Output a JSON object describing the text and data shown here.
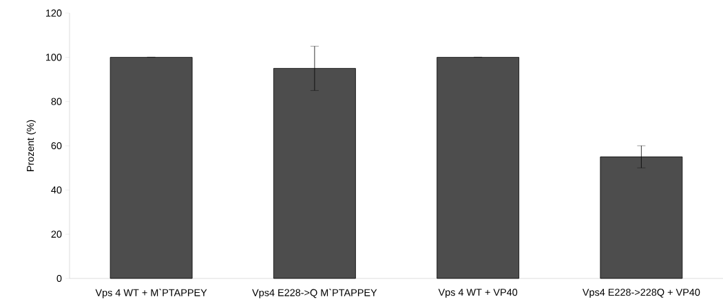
{
  "chart_data": {
    "type": "bar",
    "ylabel": "Prozent (%)",
    "categories": [
      "Vps 4 WT + M`PTAPPEY",
      "Vps4 E228->Q M`PTAPPEY",
      "Vps 4 WT + VP40",
      "Vps4 E228->228Q + VP40"
    ],
    "values": [
      100,
      95,
      100,
      55
    ],
    "errors": [
      0,
      10,
      0,
      5
    ],
    "color": "#4d4d4d",
    "ylim": [
      0,
      120
    ],
    "yticks": [
      0,
      20,
      40,
      60,
      80,
      100,
      120
    ],
    "grid": false
  }
}
